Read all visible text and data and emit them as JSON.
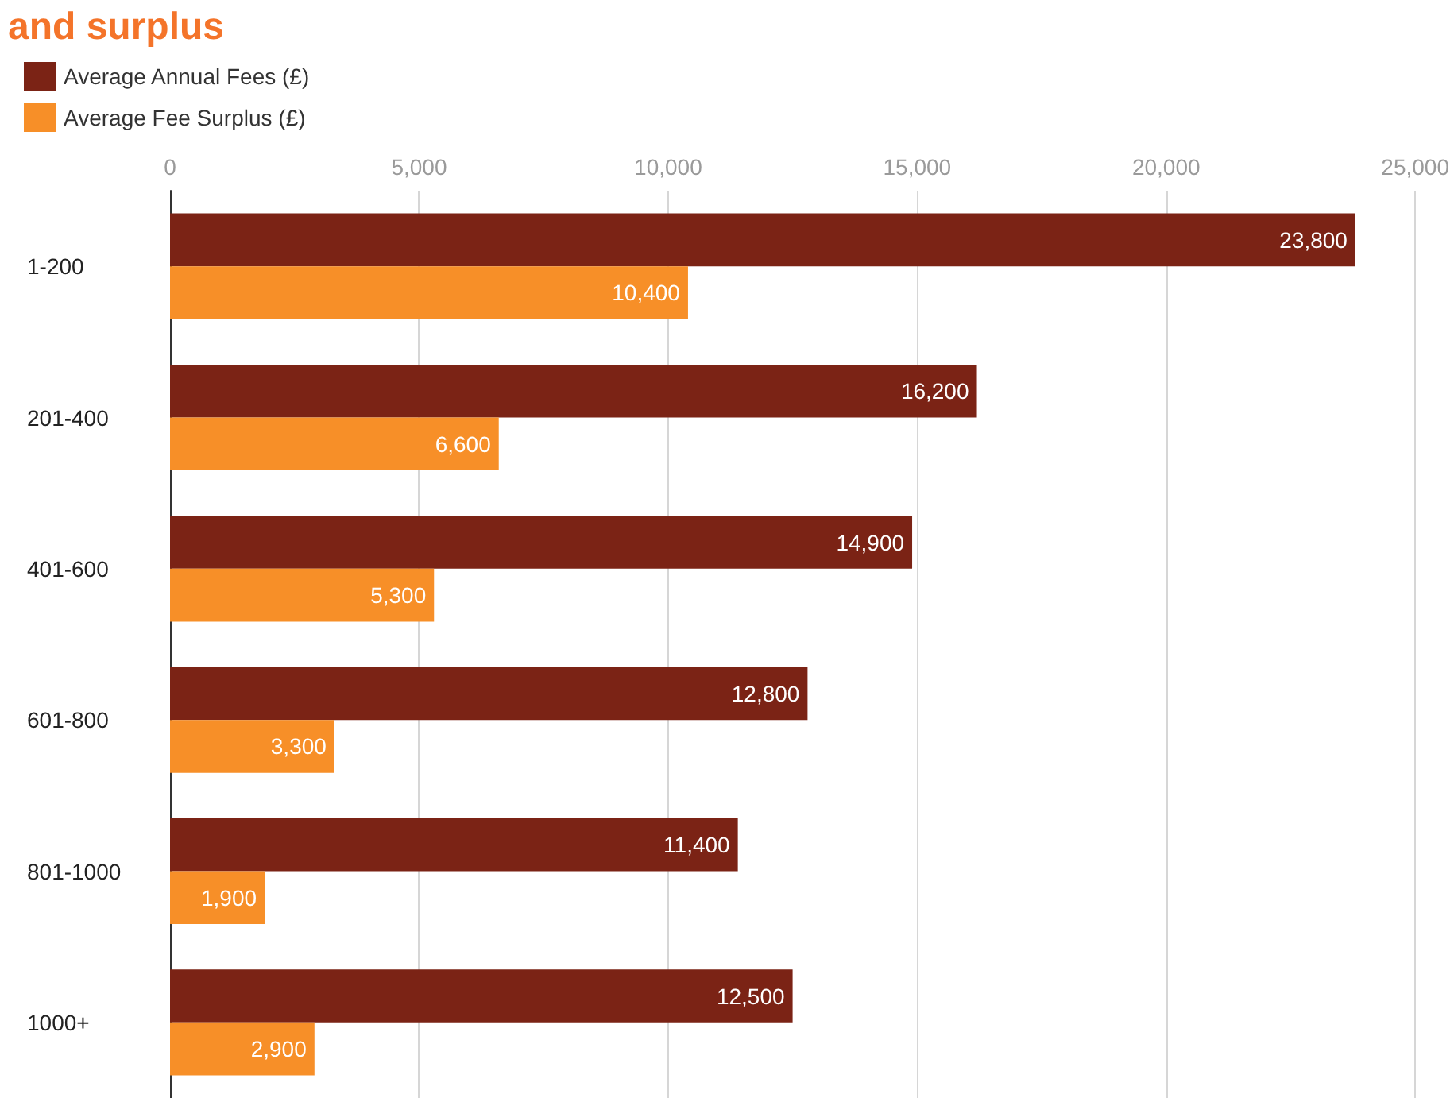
{
  "chart_data": {
    "type": "bar",
    "orientation": "horizontal",
    "title": "and surplus",
    "categories": [
      "1-200",
      "201-400",
      "401-600",
      "601-800",
      "801-1000",
      "1000+"
    ],
    "series": [
      {
        "name": "Average Annual Fees (£)",
        "color": "#7b2315",
        "values": [
          23800,
          16200,
          14900,
          12800,
          11400,
          12500
        ],
        "value_labels": [
          "23,800",
          "16,200",
          "14,900",
          "12,800",
          "11,400",
          "12,500"
        ]
      },
      {
        "name": "Average Fee Surplus (£)",
        "color": "#f78f28",
        "values": [
          10400,
          6600,
          5300,
          3300,
          1900,
          2900
        ],
        "value_labels": [
          "10,400",
          "6,600",
          "5,300",
          "3,300",
          "1,900",
          "2,900"
        ]
      }
    ],
    "xlim": [
      0,
      25000
    ],
    "xticks": [
      0,
      {
        "value": 5000,
        "label": "5,000"
      },
      {
        "value": 10000,
        "label": "10,000"
      },
      {
        "value": 15000,
        "label": "15,000"
      },
      {
        "value": 20000,
        "label": "20,000"
      },
      {
        "value": 25000,
        "label": "25,000"
      }
    ],
    "grid": "x",
    "legend": "top left"
  }
}
